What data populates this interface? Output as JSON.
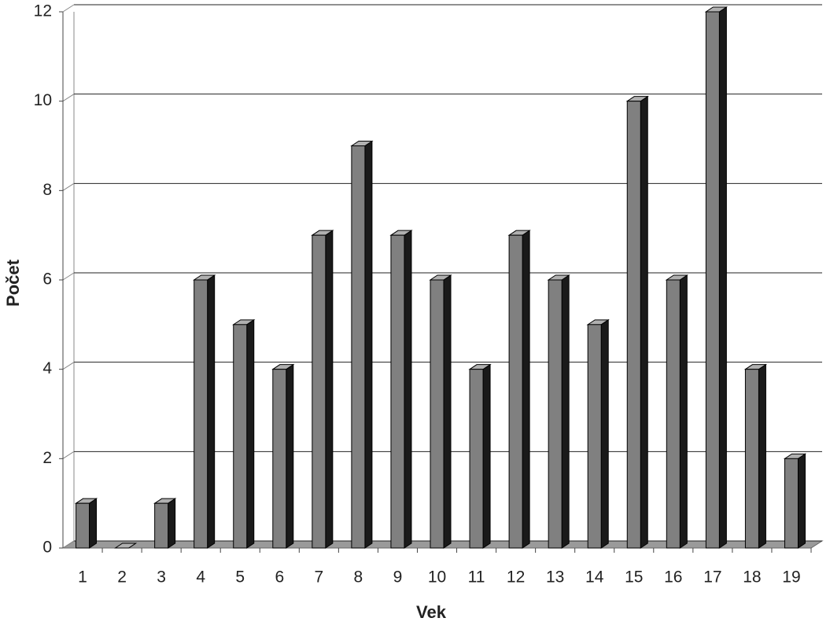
{
  "chart_data": {
    "type": "bar3d",
    "xlabel": "Vek",
    "ylabel": "Počet",
    "categories": [
      "1",
      "2",
      "3",
      "4",
      "5",
      "6",
      "7",
      "8",
      "9",
      "10",
      "11",
      "12",
      "13",
      "14",
      "15",
      "16",
      "17",
      "18",
      "19"
    ],
    "values": [
      1,
      0,
      1,
      6,
      5,
      4,
      7,
      9,
      7,
      6,
      4,
      7,
      6,
      5,
      10,
      6,
      12,
      4,
      2
    ],
    "color": "#808080",
    "ylim": [
      0,
      12
    ],
    "yticks": [
      0,
      2,
      4,
      6,
      8,
      10,
      12
    ],
    "grid": true
  }
}
